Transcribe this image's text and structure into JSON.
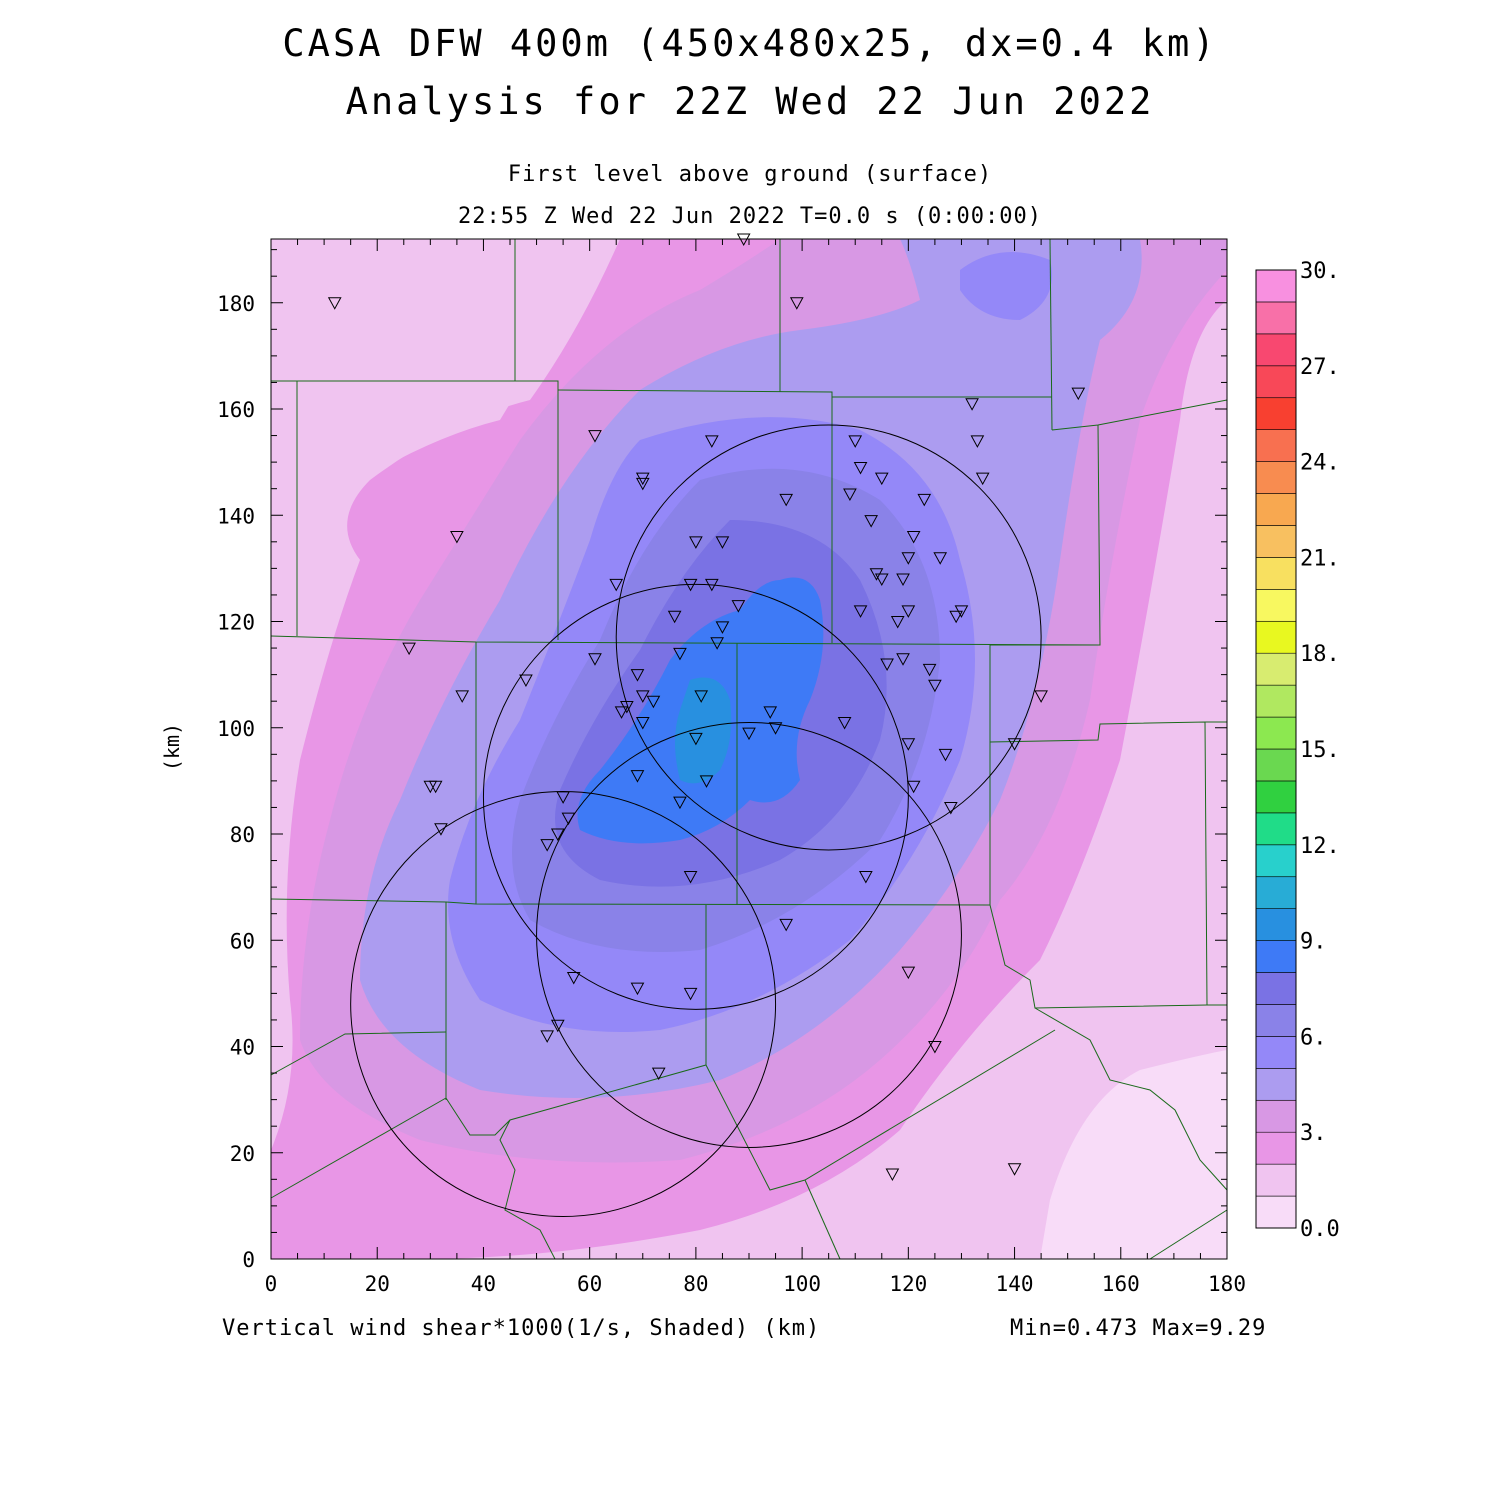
{
  "title": "CASA DFW 400m (450x480x25, dx=0.4 km)",
  "subtitle": "Analysis for 22Z Wed 22 Jun 2022",
  "level": "First level above ground (surface)",
  "valid_time": "22:55 Z Wed 22 Jun 2022   T=0.0 s (0:00:00)",
  "field_label": "Vertical wind shear*1000(1/s, Shaded)  (km)",
  "minmax": "Min=0.473 Max=9.29",
  "y_axis_label": "(km)",
  "chart_data": {
    "type": "heatmap",
    "field": "Vertical wind shear*1000",
    "units": "1/s",
    "xlim": [
      0,
      180
    ],
    "ylim": [
      0,
      192
    ],
    "x_ticks": [
      0,
      20,
      40,
      60,
      80,
      100,
      120,
      140,
      160,
      180
    ],
    "y_ticks": [
      0,
      20,
      40,
      60,
      80,
      100,
      120,
      140,
      160,
      180
    ],
    "min": 0.473,
    "max": 9.29,
    "colorbar": {
      "levels": [
        0,
        1,
        2,
        3,
        4,
        5,
        6,
        7,
        8,
        9,
        10,
        11,
        12,
        13,
        14,
        15,
        16,
        17,
        18,
        19,
        20,
        21,
        22,
        23,
        24,
        25,
        26,
        27,
        28,
        29,
        30
      ],
      "labels": [
        "0.0",
        "3.",
        "6.",
        "9.",
        "12.",
        "15.",
        "18.",
        "21.",
        "24.",
        "27.",
        "30."
      ],
      "colors": [
        "#f8dcf8",
        "#f0c4f0",
        "#e896e6",
        "#d898e4",
        "#ac9cf0",
        "#9488f8",
        "#8a82e8",
        "#7a72e4",
        "#3e7af6",
        "#2890e0",
        "#28acd6",
        "#28d0cc",
        "#20dc88",
        "#30d040",
        "#6ad850",
        "#8ce850",
        "#b0e860",
        "#d8ec70",
        "#e8f820",
        "#f8f860",
        "#f8e060",
        "#f8c060",
        "#f8a850",
        "#f88c50",
        "#f87050",
        "#f84030",
        "#f84858",
        "#f84870",
        "#f870a8",
        "#f890e0"
      ]
    },
    "radar_circles": [
      {
        "center": [
          105,
          117
        ],
        "radius": 40
      },
      {
        "center": [
          80,
          87
        ],
        "radius": 40
      },
      {
        "center": [
          90,
          61
        ],
        "radius": 40
      },
      {
        "center": [
          55,
          48
        ],
        "radius": 40
      }
    ],
    "stations": [
      [
        12,
        180
      ],
      [
        89,
        192
      ],
      [
        99,
        180
      ],
      [
        152,
        163
      ],
      [
        61,
        155
      ],
      [
        83,
        154
      ],
      [
        35,
        136
      ],
      [
        70,
        147
      ],
      [
        70,
        146
      ],
      [
        97,
        143
      ],
      [
        110,
        154
      ],
      [
        111,
        149
      ],
      [
        115,
        147
      ],
      [
        109,
        144
      ],
      [
        123,
        143
      ],
      [
        132,
        161
      ],
      [
        133,
        154
      ],
      [
        134,
        147
      ],
      [
        80,
        135
      ],
      [
        85,
        135
      ],
      [
        113,
        139
      ],
      [
        121,
        136
      ],
      [
        126,
        132
      ],
      [
        65,
        127
      ],
      [
        79,
        127
      ],
      [
        83,
        127
      ],
      [
        114,
        129
      ],
      [
        115,
        128
      ],
      [
        119,
        128
      ],
      [
        120,
        132
      ],
      [
        88,
        123
      ],
      [
        76,
        121
      ],
      [
        111,
        122
      ],
      [
        120,
        122
      ],
      [
        130,
        122
      ],
      [
        129,
        121
      ],
      [
        118,
        120
      ],
      [
        85,
        119
      ],
      [
        61,
        113
      ],
      [
        84,
        116
      ],
      [
        77,
        114
      ],
      [
        116,
        112
      ],
      [
        119,
        113
      ],
      [
        124,
        111
      ],
      [
        125,
        108
      ],
      [
        26,
        115
      ],
      [
        36,
        106
      ],
      [
        48,
        109
      ],
      [
        69,
        110
      ],
      [
        70,
        106
      ],
      [
        72,
        105
      ],
      [
        67,
        104
      ],
      [
        66,
        103
      ],
      [
        70,
        101
      ],
      [
        81,
        106
      ],
      [
        145,
        106
      ],
      [
        94,
        103
      ],
      [
        95,
        100
      ],
      [
        108,
        101
      ],
      [
        90,
        99
      ],
      [
        80,
        98
      ],
      [
        120,
        97
      ],
      [
        140,
        97
      ],
      [
        127,
        95
      ],
      [
        30,
        89
      ],
      [
        31,
        89
      ],
      [
        32,
        81
      ],
      [
        55,
        87
      ],
      [
        56,
        83
      ],
      [
        54,
        80
      ],
      [
        52,
        78
      ],
      [
        69,
        91
      ],
      [
        77,
        86
      ],
      [
        82,
        90
      ],
      [
        121,
        89
      ],
      [
        128,
        85
      ],
      [
        79,
        72
      ],
      [
        112,
        72
      ],
      [
        97,
        63
      ],
      [
        57,
        53
      ],
      [
        120,
        54
      ],
      [
        69,
        51
      ],
      [
        79,
        50
      ],
      [
        54,
        44
      ],
      [
        52,
        42
      ],
      [
        125,
        40
      ],
      [
        73,
        35
      ],
      [
        117,
        16
      ],
      [
        140,
        17
      ]
    ]
  }
}
